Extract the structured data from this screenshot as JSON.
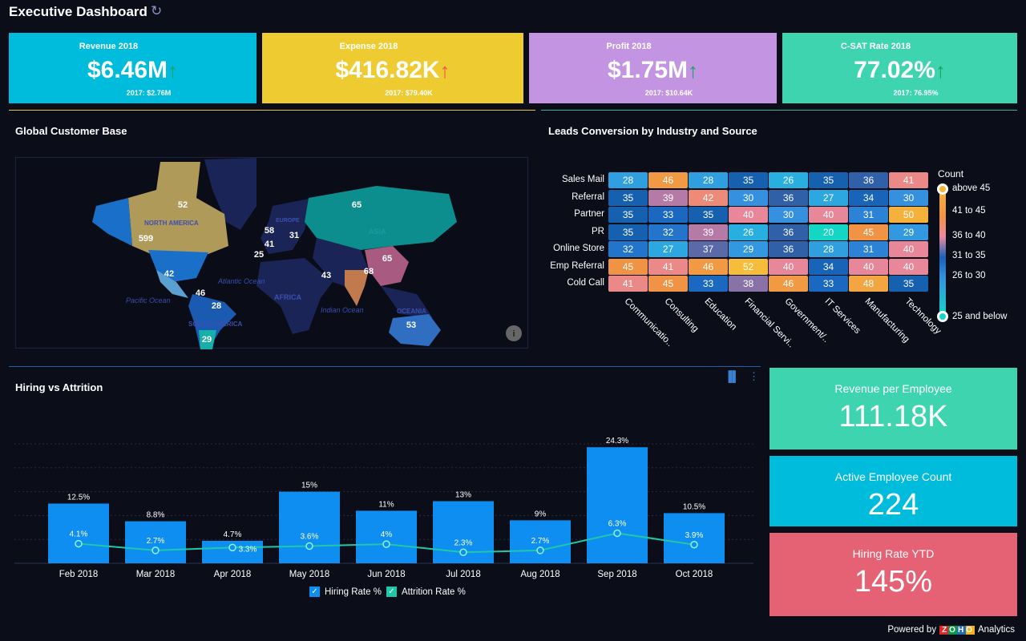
{
  "header": {
    "title": "Executive Dashboard",
    "refresh_icon": "refresh-icon"
  },
  "kpis": [
    {
      "label": "Revenue 2018",
      "value": "$6.46M",
      "trend": "up",
      "trend_color": "#1aa260",
      "previous": "2017: $2.76M",
      "color": "#00bcdc"
    },
    {
      "label": "Expense 2018",
      "value": "$416.82K",
      "trend": "up",
      "trend_color": "#f0554a",
      "previous": "2017: $79.40K",
      "color": "#eecb31"
    },
    {
      "label": "Profit 2018",
      "value": "$1.75M",
      "trend": "up",
      "trend_color": "#1aa260",
      "previous": "2017: $10.64K",
      "color": "#c294e2"
    },
    {
      "label": "C-SAT Rate 2018",
      "value": "77.02%",
      "trend": "up",
      "trend_color": "#1aa260",
      "previous": "2017: 76.95%",
      "color": "#3ed4b0"
    }
  ],
  "map": {
    "title": "Global Customer Base",
    "labels": {
      "continents": [
        "NORTH AMERICA",
        "SOUTH AMERICA",
        "EUROPE",
        "AFRICA",
        "ASIA",
        "OCEANIA"
      ],
      "oceans": [
        "Atlantic Ocean",
        "Pacific Ocean",
        "Indian Ocean"
      ]
    },
    "values": [
      {
        "region": "Canada",
        "value": "52"
      },
      {
        "region": "USA",
        "value": "599"
      },
      {
        "region": "Mexico",
        "value": "42"
      },
      {
        "region": "Colombia",
        "value": "46"
      },
      {
        "region": "Brazil",
        "value": "28"
      },
      {
        "region": "Argentina",
        "value": "29"
      },
      {
        "region": "UK",
        "value": "58"
      },
      {
        "region": "Germany",
        "value": "41"
      },
      {
        "region": "Poland",
        "value": "31"
      },
      {
        "region": "Spain",
        "value": "25"
      },
      {
        "region": "Russia",
        "value": "65"
      },
      {
        "region": "China",
        "value": "65"
      },
      {
        "region": "India",
        "value": "68"
      },
      {
        "region": "UAE",
        "value": "43"
      },
      {
        "region": "Australia",
        "value": "53"
      }
    ],
    "info_icon": "info-icon"
  },
  "heatmap": {
    "title": "Leads Conversion by Industry and Source",
    "rows": [
      "Sales Mail",
      "Referral",
      "Partner",
      "PR",
      "Online Store",
      "Emp Referral",
      "Cold Call"
    ],
    "cols": [
      "Communicatio..",
      "Consulting",
      "Education",
      "Financial Servi..",
      "Government/..",
      "IT Services",
      "Manufacturing",
      "Technology"
    ],
    "values": [
      [
        28,
        46,
        28,
        35,
        26,
        35,
        36,
        41
      ],
      [
        35,
        39,
        42,
        30,
        36,
        27,
        34,
        30
      ],
      [
        35,
        33,
        35,
        40,
        30,
        40,
        31,
        50
      ],
      [
        35,
        32,
        39,
        26,
        36,
        20,
        45,
        29
      ],
      [
        32,
        27,
        37,
        29,
        36,
        28,
        31,
        40
      ],
      [
        45,
        41,
        46,
        52,
        40,
        34,
        40,
        40
      ],
      [
        41,
        45,
        33,
        38,
        46,
        33,
        48,
        35
      ]
    ],
    "legend": {
      "title": "Count",
      "items": [
        "above 45",
        "41 to 45",
        "36 to 40",
        "31 to 35",
        "26 to 30",
        "25 and below"
      ]
    }
  },
  "chart_data": {
    "type": "bar",
    "title": "Hiring vs Attrition",
    "categories": [
      "Feb 2018",
      "Mar 2018",
      "Apr 2018",
      "May 2018",
      "Jun 2018",
      "Jul 2018",
      "Aug 2018",
      "Sep 2018",
      "Oct 2018"
    ],
    "series": [
      {
        "name": "Hiring Rate %",
        "type": "bar",
        "color": "#0d8ef0",
        "values": [
          12.5,
          8.8,
          4.7,
          15,
          11,
          13,
          9,
          24.3,
          10.5
        ],
        "labels": [
          "12.5%",
          "8.8%",
          "4.7%",
          "15%",
          "11%",
          "13%",
          "9%",
          "24.3%",
          "10.5%"
        ]
      },
      {
        "name": "Attrition Rate %",
        "type": "line",
        "color": "#1fc8a8",
        "values": [
          4.1,
          2.7,
          3.3,
          3.6,
          4,
          2.3,
          2.7,
          6.3,
          3.9
        ],
        "labels": [
          "4.1%",
          "2.7%",
          "3.3%",
          "3.6%",
          "4%",
          "2.3%",
          "2.7%",
          "6.3%",
          "3.9%"
        ]
      }
    ],
    "ylim": [
      0,
      25
    ],
    "grid": true,
    "legend": "bottom",
    "chart_icon": "bar-chart-icon",
    "menu_icon": "more-vertical-icon"
  },
  "side_kpis": [
    {
      "label": "Revenue per Employee",
      "value": "111.18K",
      "color": "#3ed4b0"
    },
    {
      "label": "Active Employee Count",
      "value": "224",
      "color": "#00bcdc"
    },
    {
      "label": "Hiring Rate YTD",
      "value": "145%",
      "color": "#e56274"
    }
  ],
  "footer": {
    "powered": "Powered by",
    "brand": "ZOHO",
    "product": "Analytics"
  }
}
